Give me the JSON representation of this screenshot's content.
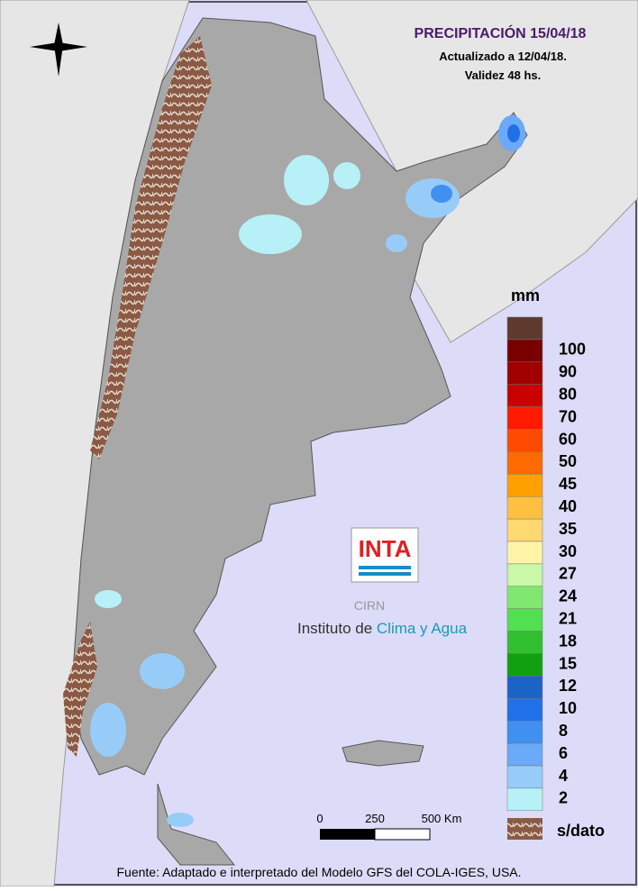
{
  "title": "PRECIPITACIÓN 15/04/18",
  "subtitle": [
    "Actualizado a 12/04/18.",
    "Validez 48 hs."
  ],
  "legend": {
    "unit": "mm",
    "items": [
      {
        "label": null,
        "color": "#5e3a2e"
      },
      {
        "label": 100,
        "color": "#7a0000"
      },
      {
        "label": 90,
        "color": "#a00000"
      },
      {
        "label": 80,
        "color": "#c80000"
      },
      {
        "label": 70,
        "color": "#ff1a00"
      },
      {
        "label": 60,
        "color": "#ff4a00"
      },
      {
        "label": 50,
        "color": "#ff6a00"
      },
      {
        "label": 45,
        "color": "#ffa000"
      },
      {
        "label": 40,
        "color": "#ffc040"
      },
      {
        "label": 35,
        "color": "#ffd870"
      },
      {
        "label": 30,
        "color": "#fff4a8"
      },
      {
        "label": 27,
        "color": "#c8f8a8"
      },
      {
        "label": 24,
        "color": "#80e870"
      },
      {
        "label": 21,
        "color": "#50e050"
      },
      {
        "label": 18,
        "color": "#30c030"
      },
      {
        "label": 15,
        "color": "#10a010"
      },
      {
        "label": 12,
        "color": "#1a64c8"
      },
      {
        "label": 10,
        "color": "#2070e8"
      },
      {
        "label": 8,
        "color": "#4090f0"
      },
      {
        "label": 6,
        "color": "#6aaaf8"
      },
      {
        "label": 4,
        "color": "#98ccf8"
      },
      {
        "label": 2,
        "color": "#b8f0f8"
      }
    ],
    "no_data": "s/dato"
  },
  "scale": {
    "labels": [
      "0",
      "250",
      "500 Km"
    ]
  },
  "logo": {
    "name": "INTA",
    "sub": "CIRN",
    "institute": "Instituto de ",
    "institute_highlight": "Clima y Agua"
  },
  "source": "Fuente: Adaptado e interpretado del Modelo GFS del COLA-IGES, USA."
}
